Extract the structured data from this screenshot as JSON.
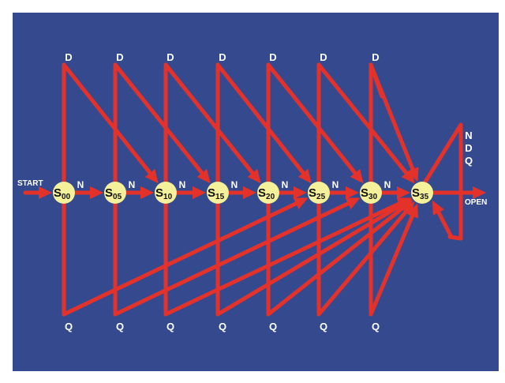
{
  "colors": {
    "background": "#354a8e",
    "arrow": "#e4322b",
    "state_fill": "#f5f19a",
    "label_text": "#ffffff",
    "state_text": "#111111"
  },
  "start_label": "START",
  "open_label": "OPEN",
  "coin_labels": {
    "nickel": "N",
    "dime": "D",
    "quarter": "Q"
  },
  "states": [
    {
      "id": "s00",
      "letter": "S",
      "sub": "00"
    },
    {
      "id": "s05",
      "letter": "S",
      "sub": "05"
    },
    {
      "id": "s10",
      "letter": "S",
      "sub": "10"
    },
    {
      "id": "s15",
      "letter": "S",
      "sub": "15"
    },
    {
      "id": "s20",
      "letter": "S",
      "sub": "20"
    },
    {
      "id": "s25",
      "letter": "S",
      "sub": "25"
    },
    {
      "id": "s30",
      "letter": "S",
      "sub": "30"
    },
    {
      "id": "s35",
      "letter": "S",
      "sub": "35"
    }
  ],
  "self_loop_labels": [
    "N",
    "D",
    "Q"
  ]
}
